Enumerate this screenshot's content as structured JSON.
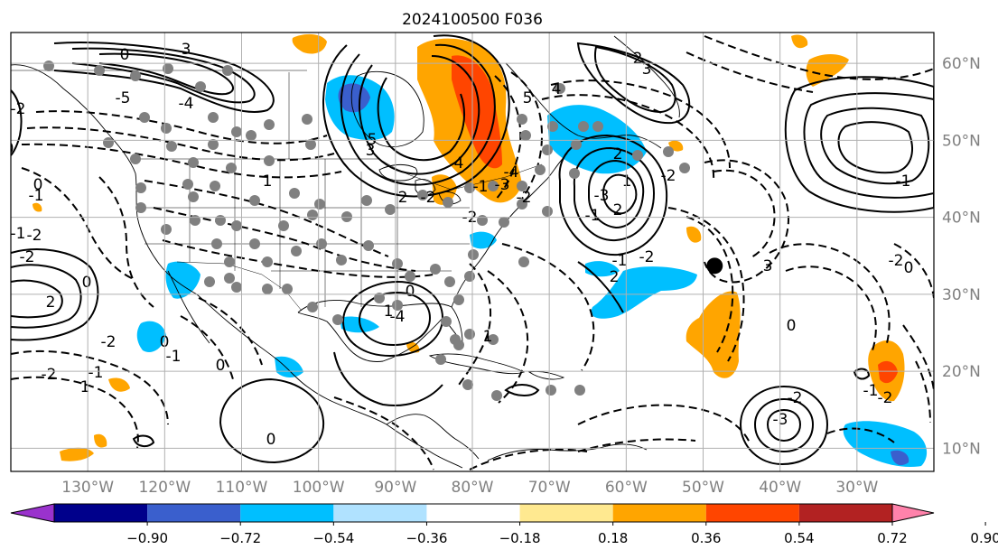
{
  "title": "2024100500 F036",
  "map": {
    "lon_range": [
      -140,
      -20
    ],
    "lat_range": [
      7,
      64
    ],
    "lon_ticks": [
      "130°W",
      "120°W",
      "110°W",
      "100°W",
      "90°W",
      "80°W",
      "70°W",
      "60°W",
      "50°W",
      "40°W",
      "30°W"
    ],
    "lon_tick_values": [
      -130,
      -120,
      -110,
      -100,
      -90,
      -80,
      -70,
      -60,
      -50,
      -40,
      -30
    ],
    "lat_ticks": [
      "10°N",
      "20°N",
      "30°N",
      "40°N",
      "50°N",
      "60°N"
    ],
    "lat_tick_values": [
      10,
      20,
      30,
      40,
      50,
      60
    ],
    "tick_label_color": "#808080",
    "grid": true
  },
  "colorbar": {
    "labels": [
      "−0.90",
      "−0.72",
      "−0.54",
      "−0.36",
      "−0.18",
      "0.18",
      "0.36",
      "0.54",
      "0.72",
      "0.90"
    ],
    "colors": [
      "#9a32cd",
      "#00008b",
      "#3a5fcd",
      "#00bfff",
      "#b0e2ff",
      "#ffffff",
      "#ffe990",
      "#ffa500",
      "#ff4500",
      "#b22222",
      "#ff82ab"
    ],
    "extend": "both"
  },
  "contour_labels": [
    "3",
    "0",
    "-5",
    "-4",
    "3",
    "-2",
    "5",
    "0",
    "4",
    "-3",
    "-4",
    "-2",
    "1",
    "2",
    "-2",
    "0",
    "-1",
    "-1",
    "-2",
    "-1",
    "-2",
    "-2",
    "0",
    "2",
    "0",
    "-2",
    "-1",
    "-2",
    "-1",
    "0",
    "1",
    "0",
    "0",
    "1",
    "-4",
    "5",
    "4",
    "2",
    "3",
    "2",
    "-2",
    "1",
    "-3",
    "2",
    "-1",
    "-2",
    "-1",
    "2",
    "1",
    "0",
    "-2",
    "-1",
    "-2",
    "-3",
    "3",
    "-1",
    "-2",
    "0"
  ],
  "storm_marker": {
    "lon": -48.5,
    "lat": 33.7,
    "color": "#000000"
  },
  "station_color": "#808080"
}
